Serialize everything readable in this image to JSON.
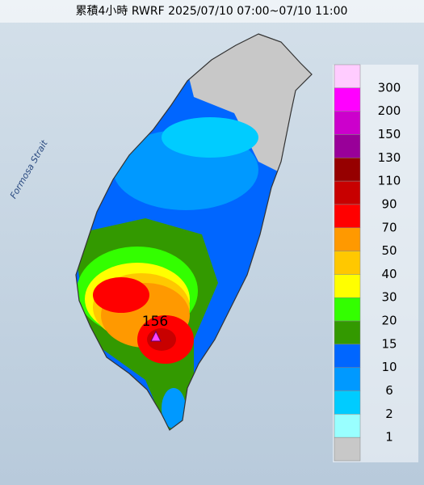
{
  "title": "累積4小時 RWRF 2025/07/10 07:00~07/10 11:00",
  "sea_label": "Formosa Strait",
  "max_label": "156",
  "legend": {
    "labels": [
      "300",
      "200",
      "150",
      "130",
      "110",
      "90",
      "70",
      "50",
      "40",
      "30",
      "20",
      "15",
      "10",
      "6",
      "2",
      "1"
    ],
    "colors": [
      "#ffccff",
      "#ff00ff",
      "#cc00cc",
      "#990099",
      "#960000",
      "#c80000",
      "#ff0000",
      "#ff9900",
      "#ffc800",
      "#ffff00",
      "#33ff00",
      "#339900",
      "#0066ff",
      "#0099ff",
      "#00ccff",
      "#99ffff",
      "#c8c8c8"
    ]
  }
}
